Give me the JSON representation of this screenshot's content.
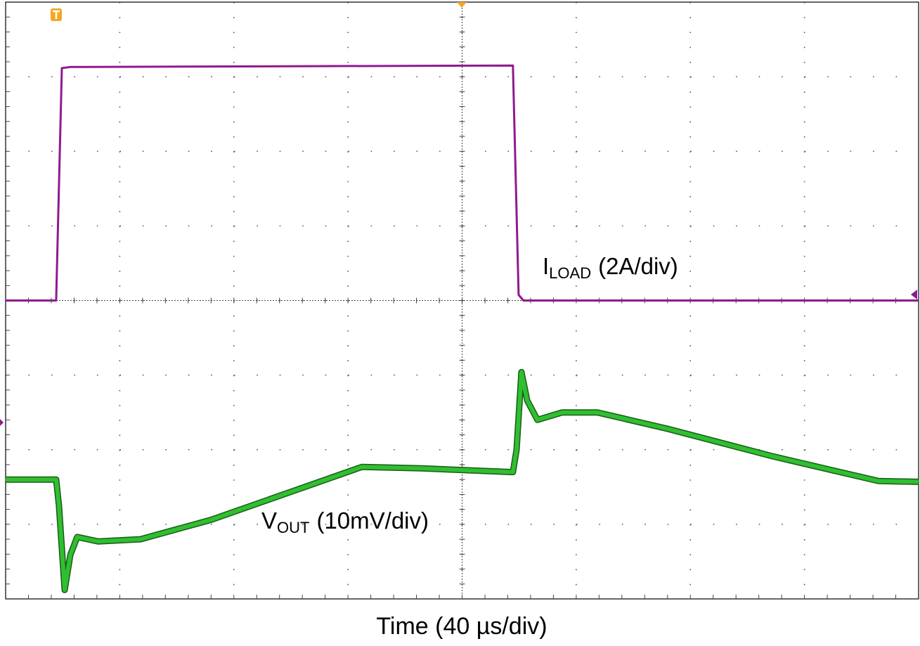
{
  "chart_data": {
    "type": "line",
    "xlabel": "Time (40 µs/div)",
    "xlim": [
      0,
      320
    ],
    "ylim": [
      -8,
      8
    ],
    "y2lim": [
      -16,
      64
    ],
    "grid": true,
    "series": [
      {
        "label_parts": {
          "main": "I",
          "sub": "LOAD",
          "rest": "(2A/div)"
        },
        "color": "#8e1a8e",
        "x": [
          0,
          17.7,
          19.7,
          22.7,
          177.8,
          179.8,
          181.5,
          320
        ],
        "values": [
          0,
          0,
          6.23,
          6.26,
          6.3,
          0.15,
          0,
          0
        ]
      },
      {
        "label_parts": {
          "main": "V",
          "sub": "OUT",
          "rest": "(10mV/div)"
        },
        "color": "#2fbf2f",
        "axis": "y2",
        "x": [
          0,
          17.7,
          18.7,
          20.7,
          22.7,
          25.1,
          32.5,
          47.3,
          72.0,
          96.6,
          124.9,
          145.8,
          177.8,
          179.1,
          180.8,
          182.8,
          186.4,
          195.1,
          207.4,
          232.0,
          269.0,
          305.9,
          320
        ],
        "values": [
          0,
          0,
          -3.5,
          -14.8,
          -10.1,
          -7.7,
          -8.3,
          -8.0,
          -5.4,
          -2.1,
          1.7,
          1.5,
          1.0,
          4.0,
          14.4,
          10.6,
          8.0,
          9.0,
          9.0,
          6.8,
          3.1,
          -0.2,
          -0.3
        ]
      }
    ]
  }
}
